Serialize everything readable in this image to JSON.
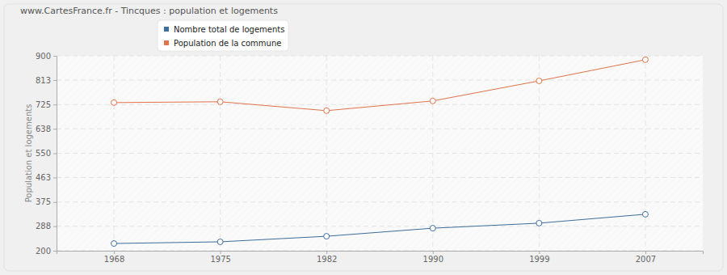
{
  "chart_data": {
    "type": "line",
    "title": "www.CartesFrance.fr - Tincques : population et logements",
    "y_label": "Population et logements",
    "categories": [
      "1968",
      "1975",
      "1982",
      "1990",
      "1999",
      "2007"
    ],
    "series": [
      {
        "name": "Nombre total de logements",
        "color": "#3d6e9c",
        "marker": "circle",
        "values": [
          226,
          232,
          252,
          281,
          299,
          331
        ]
      },
      {
        "name": "Population de la commune",
        "color": "#e0734a",
        "marker": "circle",
        "values": [
          732,
          735,
          703,
          738,
          810,
          886
        ]
      }
    ],
    "ylim": [
      200,
      900
    ],
    "yticks": [
      200,
      288,
      375,
      463,
      550,
      638,
      725,
      813,
      900
    ],
    "grid": true,
    "legend": "top"
  }
}
